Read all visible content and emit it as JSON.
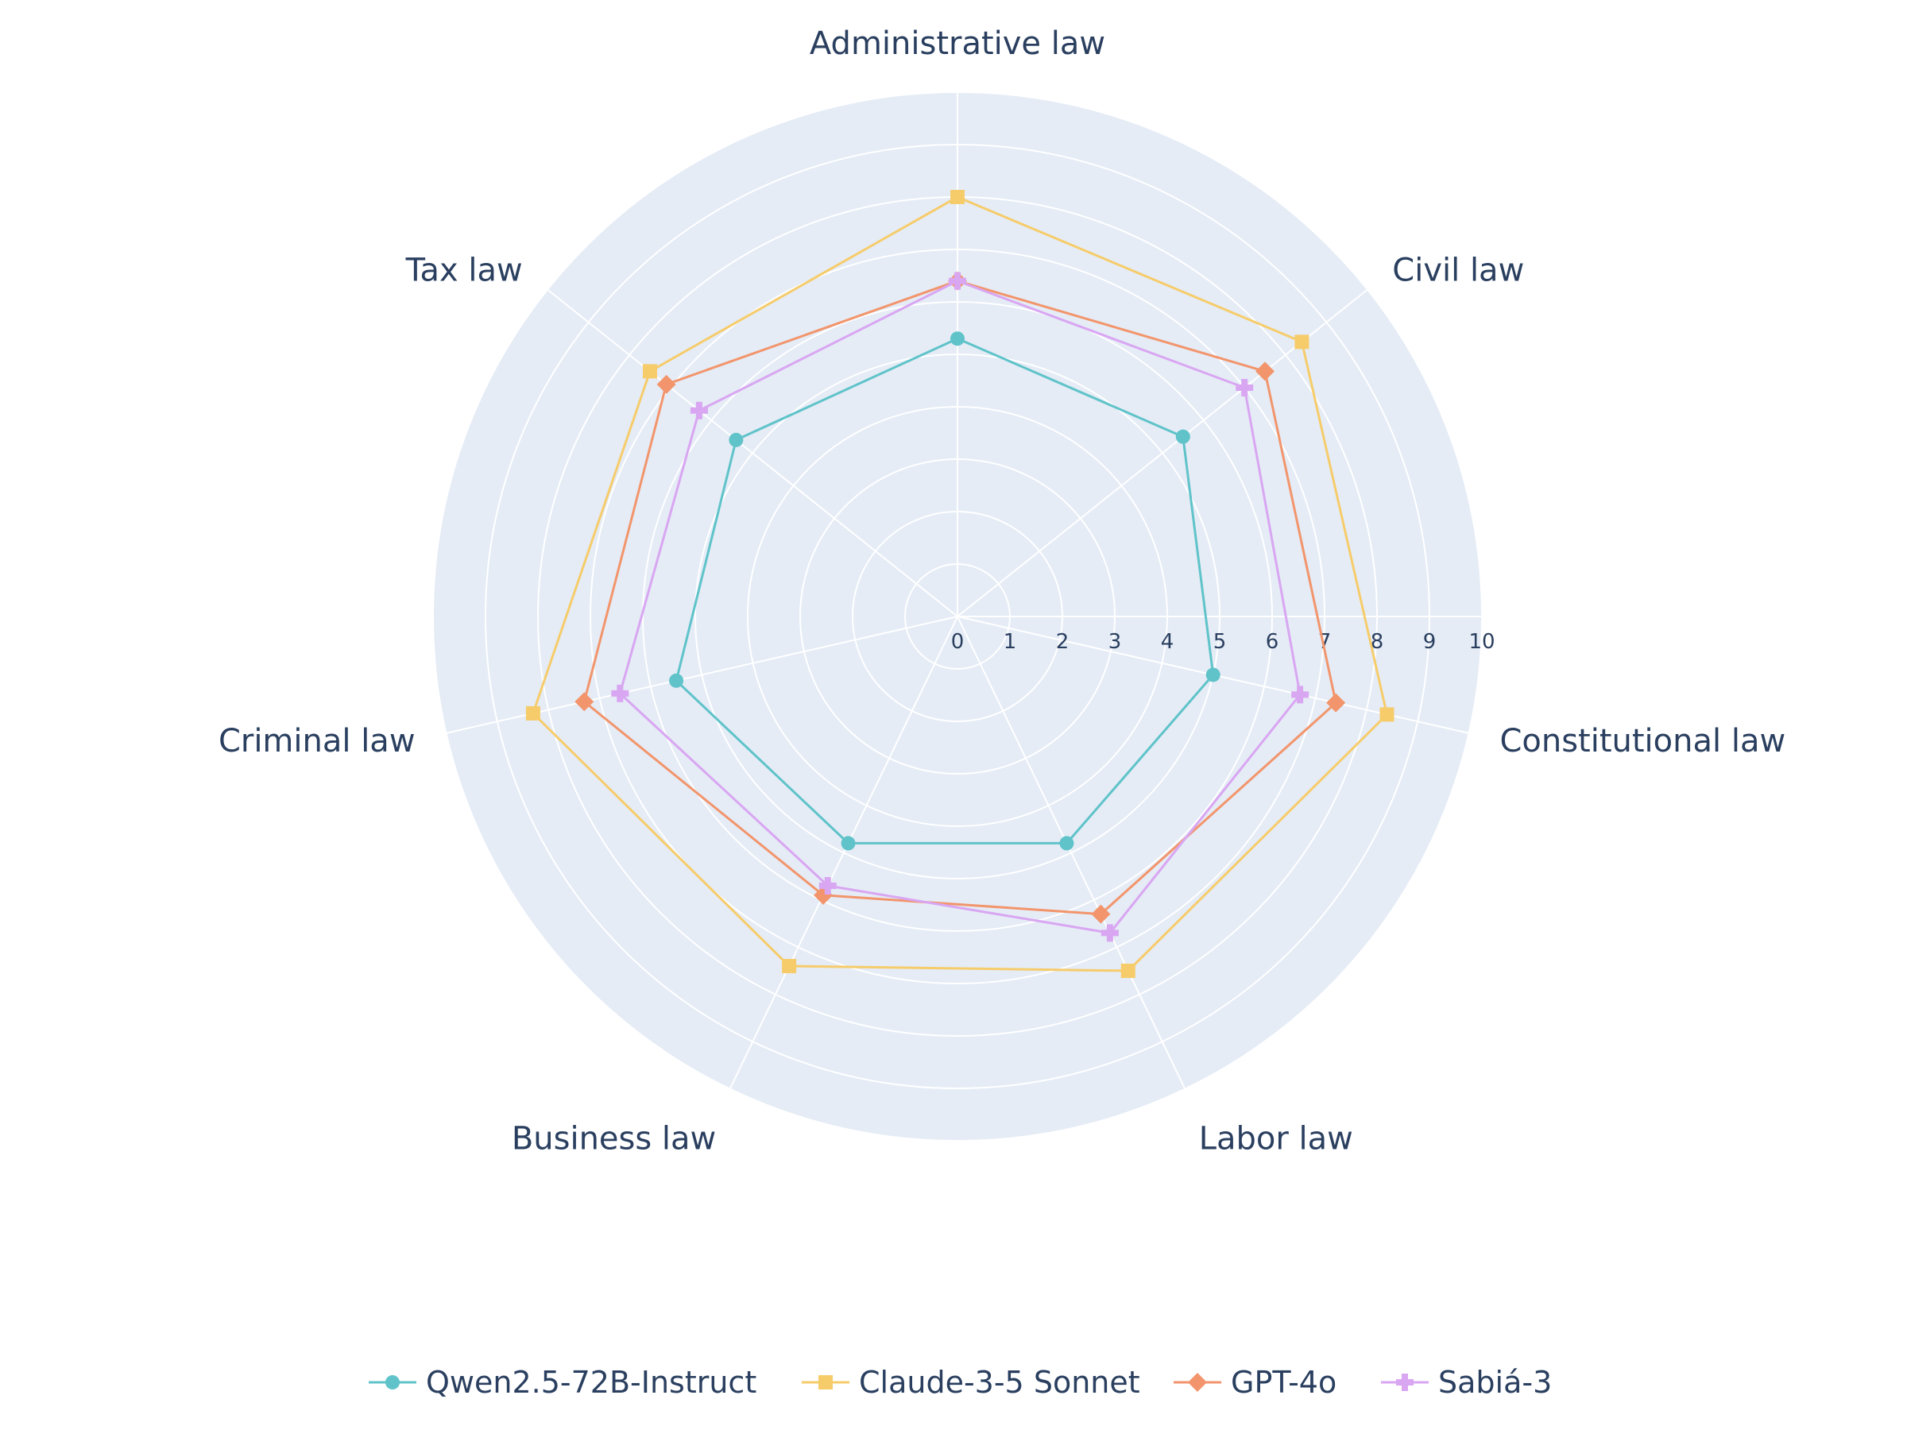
{
  "chart_data": {
    "type": "radar",
    "categories": [
      "Administrative law",
      "Civil law",
      "Constitutional law",
      "Labor law",
      "Business law",
      "Criminal law",
      "Tax law"
    ],
    "radial_range": [
      0,
      10
    ],
    "radial_ticks": [
      "0",
      "1",
      "2",
      "3",
      "4",
      "5",
      "6",
      "7",
      "8",
      "9",
      "10"
    ],
    "grid": true,
    "legend_position": "bottom",
    "series": [
      {
        "name": "Qwen2.5-72B-Instruct",
        "color": "#5fc3c9",
        "marker": "circle",
        "values": [
          5.3,
          5.5,
          5.0,
          4.8,
          4.8,
          5.5,
          5.4
        ]
      },
      {
        "name": "Claude-3-5 Sonnet",
        "color": "#f6cc6b",
        "marker": "square",
        "values": [
          8.0,
          8.4,
          8.4,
          7.5,
          7.4,
          8.3,
          7.5
        ]
      },
      {
        "name": "GPT-4o",
        "color": "#f2956c",
        "marker": "diamond",
        "values": [
          6.4,
          7.5,
          7.4,
          6.3,
          5.9,
          7.3,
          7.1
        ]
      },
      {
        "name": "Sabiá-3",
        "color": "#d9a6f2",
        "marker": "cross",
        "values": [
          6.4,
          7.0,
          6.7,
          6.7,
          5.7,
          6.6,
          6.3
        ]
      }
    ]
  }
}
